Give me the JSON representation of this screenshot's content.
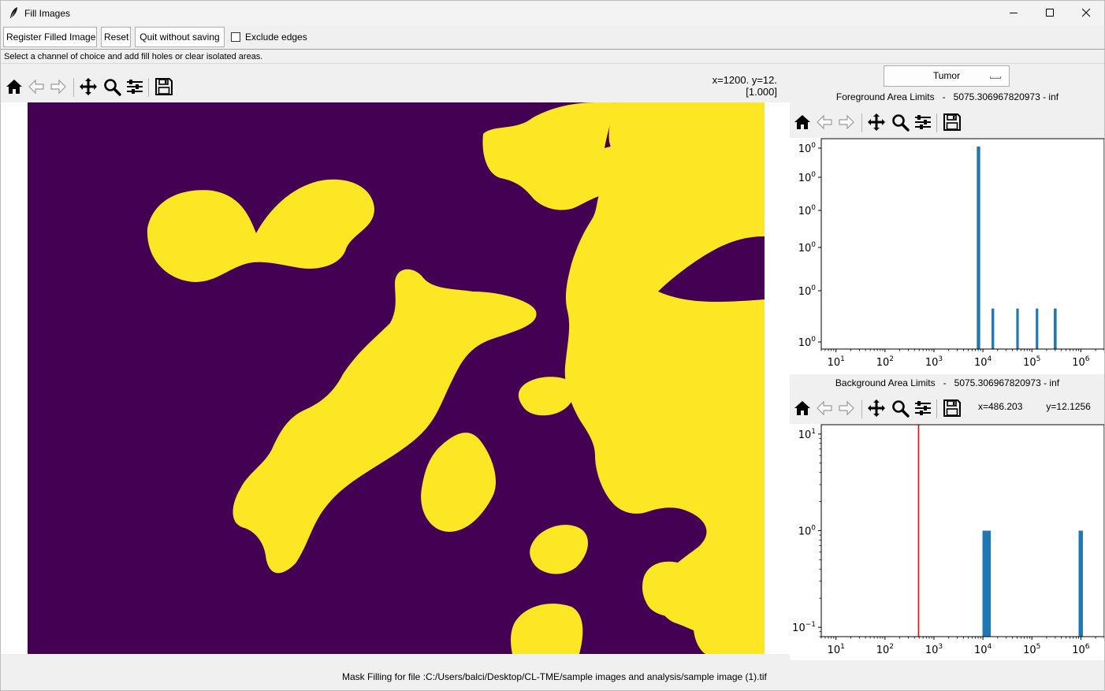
{
  "window": {
    "title": "Fill Images",
    "icon": "feather-icon"
  },
  "toolbar": {
    "register_label": "Register Filled Image",
    "reset_label": "Reset",
    "quit_label": "Quit without saving",
    "exclude_edges_label": "Exclude edges",
    "exclude_edges_checked": false
  },
  "instruction": "Select a channel of choice and add fill holes or clear  isolated areas.",
  "left_figure": {
    "coord_line1": "x=1200. y=12.",
    "coord_line2": "[1.000]",
    "colors": {
      "background": "#440154",
      "foreground": "#fde725"
    }
  },
  "nav_icons": [
    "home-icon",
    "back-arrow-icon",
    "forward-arrow-icon",
    "pan-icon",
    "zoom-icon",
    "configure-subplots-icon",
    "save-icon"
  ],
  "channel_select": {
    "value": "Tumor"
  },
  "foreground": {
    "label_name": "Foreground Area Limits",
    "label_sep": "-",
    "label_range": "5075.306967820973 - inf"
  },
  "background": {
    "label_name": "Background Area Limits",
    "label_sep": "-",
    "label_range": "5075.306967820973 - inf",
    "coord_x": "x=486.203",
    "coord_y": "y=12.1256"
  },
  "status": "Mask Filling for file :C:/Users/balci/Desktop/CL-TME/sample images and analysis/sample image (1).tif",
  "chart_data": [
    {
      "type": "bar",
      "name": "foreground-area-histogram",
      "title": "",
      "xscale": "log",
      "yscale": "log",
      "xlim": [
        5,
        3000000
      ],
      "xticks": [
        10,
        100,
        1000,
        10000,
        100000,
        1000000
      ],
      "xtick_labels": [
        "10^1",
        "10^2",
        "10^3",
        "10^4",
        "10^5",
        "10^6"
      ],
      "ytick_labels": [
        "10^0",
        "10^0",
        "10^0",
        "10^0",
        "10^0",
        "10^0"
      ],
      "bars": [
        {
          "x_start": 7500,
          "x_end": 8800,
          "value": 5
        },
        {
          "x_start": 15000,
          "x_end": 17000,
          "value": 1
        },
        {
          "x_start": 48000,
          "x_end": 54000,
          "value": 1
        },
        {
          "x_start": 120000,
          "x_end": 135000,
          "value": 1
        },
        {
          "x_start": 280000,
          "x_end": 320000,
          "value": 1
        }
      ],
      "bar_color": "#1f77b4"
    },
    {
      "type": "bar",
      "name": "background-area-histogram",
      "title": "",
      "xscale": "log",
      "yscale": "log",
      "xlim": [
        5,
        3000000
      ],
      "ylim": [
        0.08,
        12.5
      ],
      "xticks": [
        10,
        100,
        1000,
        10000,
        100000,
        1000000
      ],
      "xtick_labels": [
        "10^1",
        "10^2",
        "10^3",
        "10^4",
        "10^5",
        "10^6"
      ],
      "yticks": [
        0.1,
        1,
        10
      ],
      "ytick_labels": [
        "10^-1",
        "10^0",
        "10^1"
      ],
      "bars": [
        {
          "x_start": 9800,
          "x_end": 14500,
          "value": 1
        },
        {
          "x_start": 900000,
          "x_end": 1100000,
          "value": 1
        }
      ],
      "bar_color": "#1f77b4",
      "vline": {
        "x": 486.203,
        "color": "#ff0000"
      }
    }
  ]
}
